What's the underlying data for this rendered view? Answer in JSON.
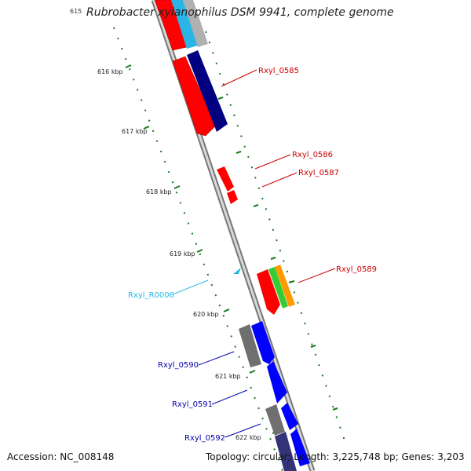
{
  "title": "Rubrobacter xylanophilus DSM 9941, complete genome",
  "corner_tick": "615",
  "kbp_labels": [
    "616 kbp",
    "617 kbp",
    "618 kbp",
    "619 kbp",
    "620 kbp",
    "621 kbp",
    "622 kbp"
  ],
  "gene_labels": {
    "rxyl_0585": "Rxyl_0585",
    "rxyl_0586": "Rxyl_0586",
    "rxyl_0587": "Rxyl_0587",
    "rxyl_0589": "Rxyl_0589",
    "rxyl_r0006": "Rxyl_R0006",
    "rxyl_0590": "Rxyl_0590",
    "rxyl_0591": "Rxyl_0591",
    "rxyl_0592": "Rxyl_0592"
  },
  "footer": {
    "accession": "Accession: NC_008148",
    "topology": "Topology: circular; Length: 3,225,748 bp; Genes: 3,203"
  },
  "colors": {
    "red": "#ff0000",
    "navy": "#000080",
    "blue": "#0000ff",
    "cyan": "#29b6e6",
    "green": "#33cc33",
    "orange": "#ff9900",
    "gray": "#777777",
    "tick_green": "#1a7a1a",
    "backbone": "#999999"
  }
}
